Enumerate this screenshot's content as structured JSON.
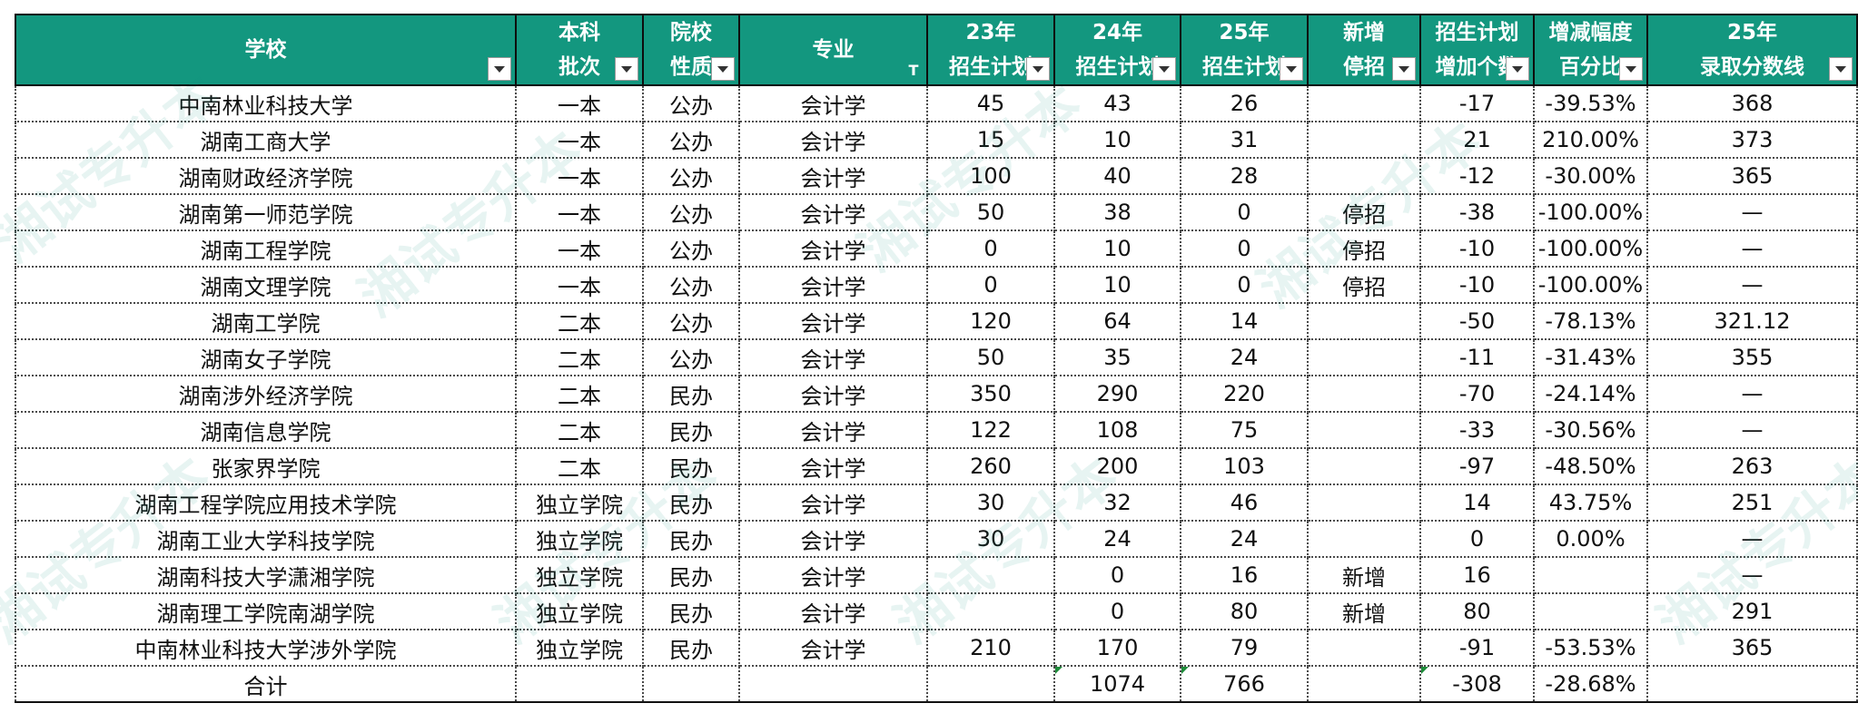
{
  "table": {
    "headers": [
      {
        "key": "school",
        "lines": [
          "学校"
        ],
        "filter": "dropdown"
      },
      {
        "key": "level",
        "lines": [
          "本科",
          "批次"
        ],
        "filter": "dropdown"
      },
      {
        "key": "nature",
        "lines": [
          "院校",
          "性质"
        ],
        "filter": "dropdown"
      },
      {
        "key": "major",
        "lines": [
          "专业"
        ],
        "filter": "active"
      },
      {
        "key": "plan23",
        "lines": [
          "23年",
          "招生计划"
        ],
        "filter": "dropdown"
      },
      {
        "key": "plan24",
        "lines": [
          "24年",
          "招生计划"
        ],
        "filter": "dropdown"
      },
      {
        "key": "plan25",
        "lines": [
          "25年",
          "招生计划"
        ],
        "filter": "dropdown"
      },
      {
        "key": "status",
        "lines": [
          "新增",
          "停招"
        ],
        "filter": "dropdown"
      },
      {
        "key": "increase",
        "lines": [
          "招生计划",
          "增加个数"
        ],
        "filter": "dropdown"
      },
      {
        "key": "pct",
        "lines": [
          "增减幅度",
          "百分比"
        ],
        "filter": "dropdown"
      },
      {
        "key": "score25",
        "lines": [
          "25年",
          "录取分数线"
        ],
        "filter": "dropdown"
      }
    ],
    "filter_active_glyph": "T",
    "rows": [
      [
        "中南林业科技大学",
        "一本",
        "公办",
        "会计学",
        "45",
        "43",
        "26",
        "",
        "-17",
        "-39.53%",
        "368"
      ],
      [
        "湖南工商大学",
        "一本",
        "公办",
        "会计学",
        "15",
        "10",
        "31",
        "",
        "21",
        "210.00%",
        "373"
      ],
      [
        "湖南财政经济学院",
        "一本",
        "公办",
        "会计学",
        "100",
        "40",
        "28",
        "",
        "-12",
        "-30.00%",
        "365"
      ],
      [
        "湖南第一师范学院",
        "一本",
        "公办",
        "会计学",
        "50",
        "38",
        "0",
        "停招",
        "-38",
        "-100.00%",
        "—"
      ],
      [
        "湖南工程学院",
        "一本",
        "公办",
        "会计学",
        "0",
        "10",
        "0",
        "停招",
        "-10",
        "-100.00%",
        "—"
      ],
      [
        "湖南文理学院",
        "一本",
        "公办",
        "会计学",
        "0",
        "10",
        "0",
        "停招",
        "-10",
        "-100.00%",
        "—"
      ],
      [
        "湖南工学院",
        "二本",
        "公办",
        "会计学",
        "120",
        "64",
        "14",
        "",
        "-50",
        "-78.13%",
        "321.12"
      ],
      [
        "湖南女子学院",
        "二本",
        "公办",
        "会计学",
        "50",
        "35",
        "24",
        "",
        "-11",
        "-31.43%",
        "355"
      ],
      [
        "湖南涉外经济学院",
        "二本",
        "民办",
        "会计学",
        "350",
        "290",
        "220",
        "",
        "-70",
        "-24.14%",
        "—"
      ],
      [
        "湖南信息学院",
        "二本",
        "民办",
        "会计学",
        "122",
        "108",
        "75",
        "",
        "-33",
        "-30.56%",
        "—"
      ],
      [
        "张家界学院",
        "二本",
        "民办",
        "会计学",
        "260",
        "200",
        "103",
        "",
        "-97",
        "-48.50%",
        "263"
      ],
      [
        "湖南工程学院应用技术学院",
        "独立学院",
        "民办",
        "会计学",
        "30",
        "32",
        "46",
        "",
        "14",
        "43.75%",
        "251"
      ],
      [
        "湖南工业大学科技学院",
        "独立学院",
        "民办",
        "会计学",
        "30",
        "24",
        "24",
        "",
        "0",
        "0.00%",
        "—"
      ],
      [
        "湖南科技大学潇湘学院",
        "独立学院",
        "民办",
        "会计学",
        "",
        "0",
        "16",
        "新增",
        "16",
        "",
        "—"
      ],
      [
        "湖南理工学院南湖学院",
        "独立学院",
        "民办",
        "会计学",
        "",
        "0",
        "80",
        "新增",
        "80",
        "",
        "291"
      ],
      [
        "中南林业科技大学涉外学院",
        "独立学院",
        "民办",
        "会计学",
        "210",
        "170",
        "79",
        "",
        "-91",
        "-53.53%",
        "365"
      ],
      [
        "合计",
        "",
        "",
        "",
        "",
        "1074",
        "766",
        "",
        "-308",
        "-28.68%",
        ""
      ]
    ]
  },
  "watermark_text": "湘试专升本",
  "colors": {
    "header_bg": "#13977f",
    "header_text": "#ffffff",
    "watermark": "#13977f",
    "error_marker": "#1e8c3a"
  }
}
